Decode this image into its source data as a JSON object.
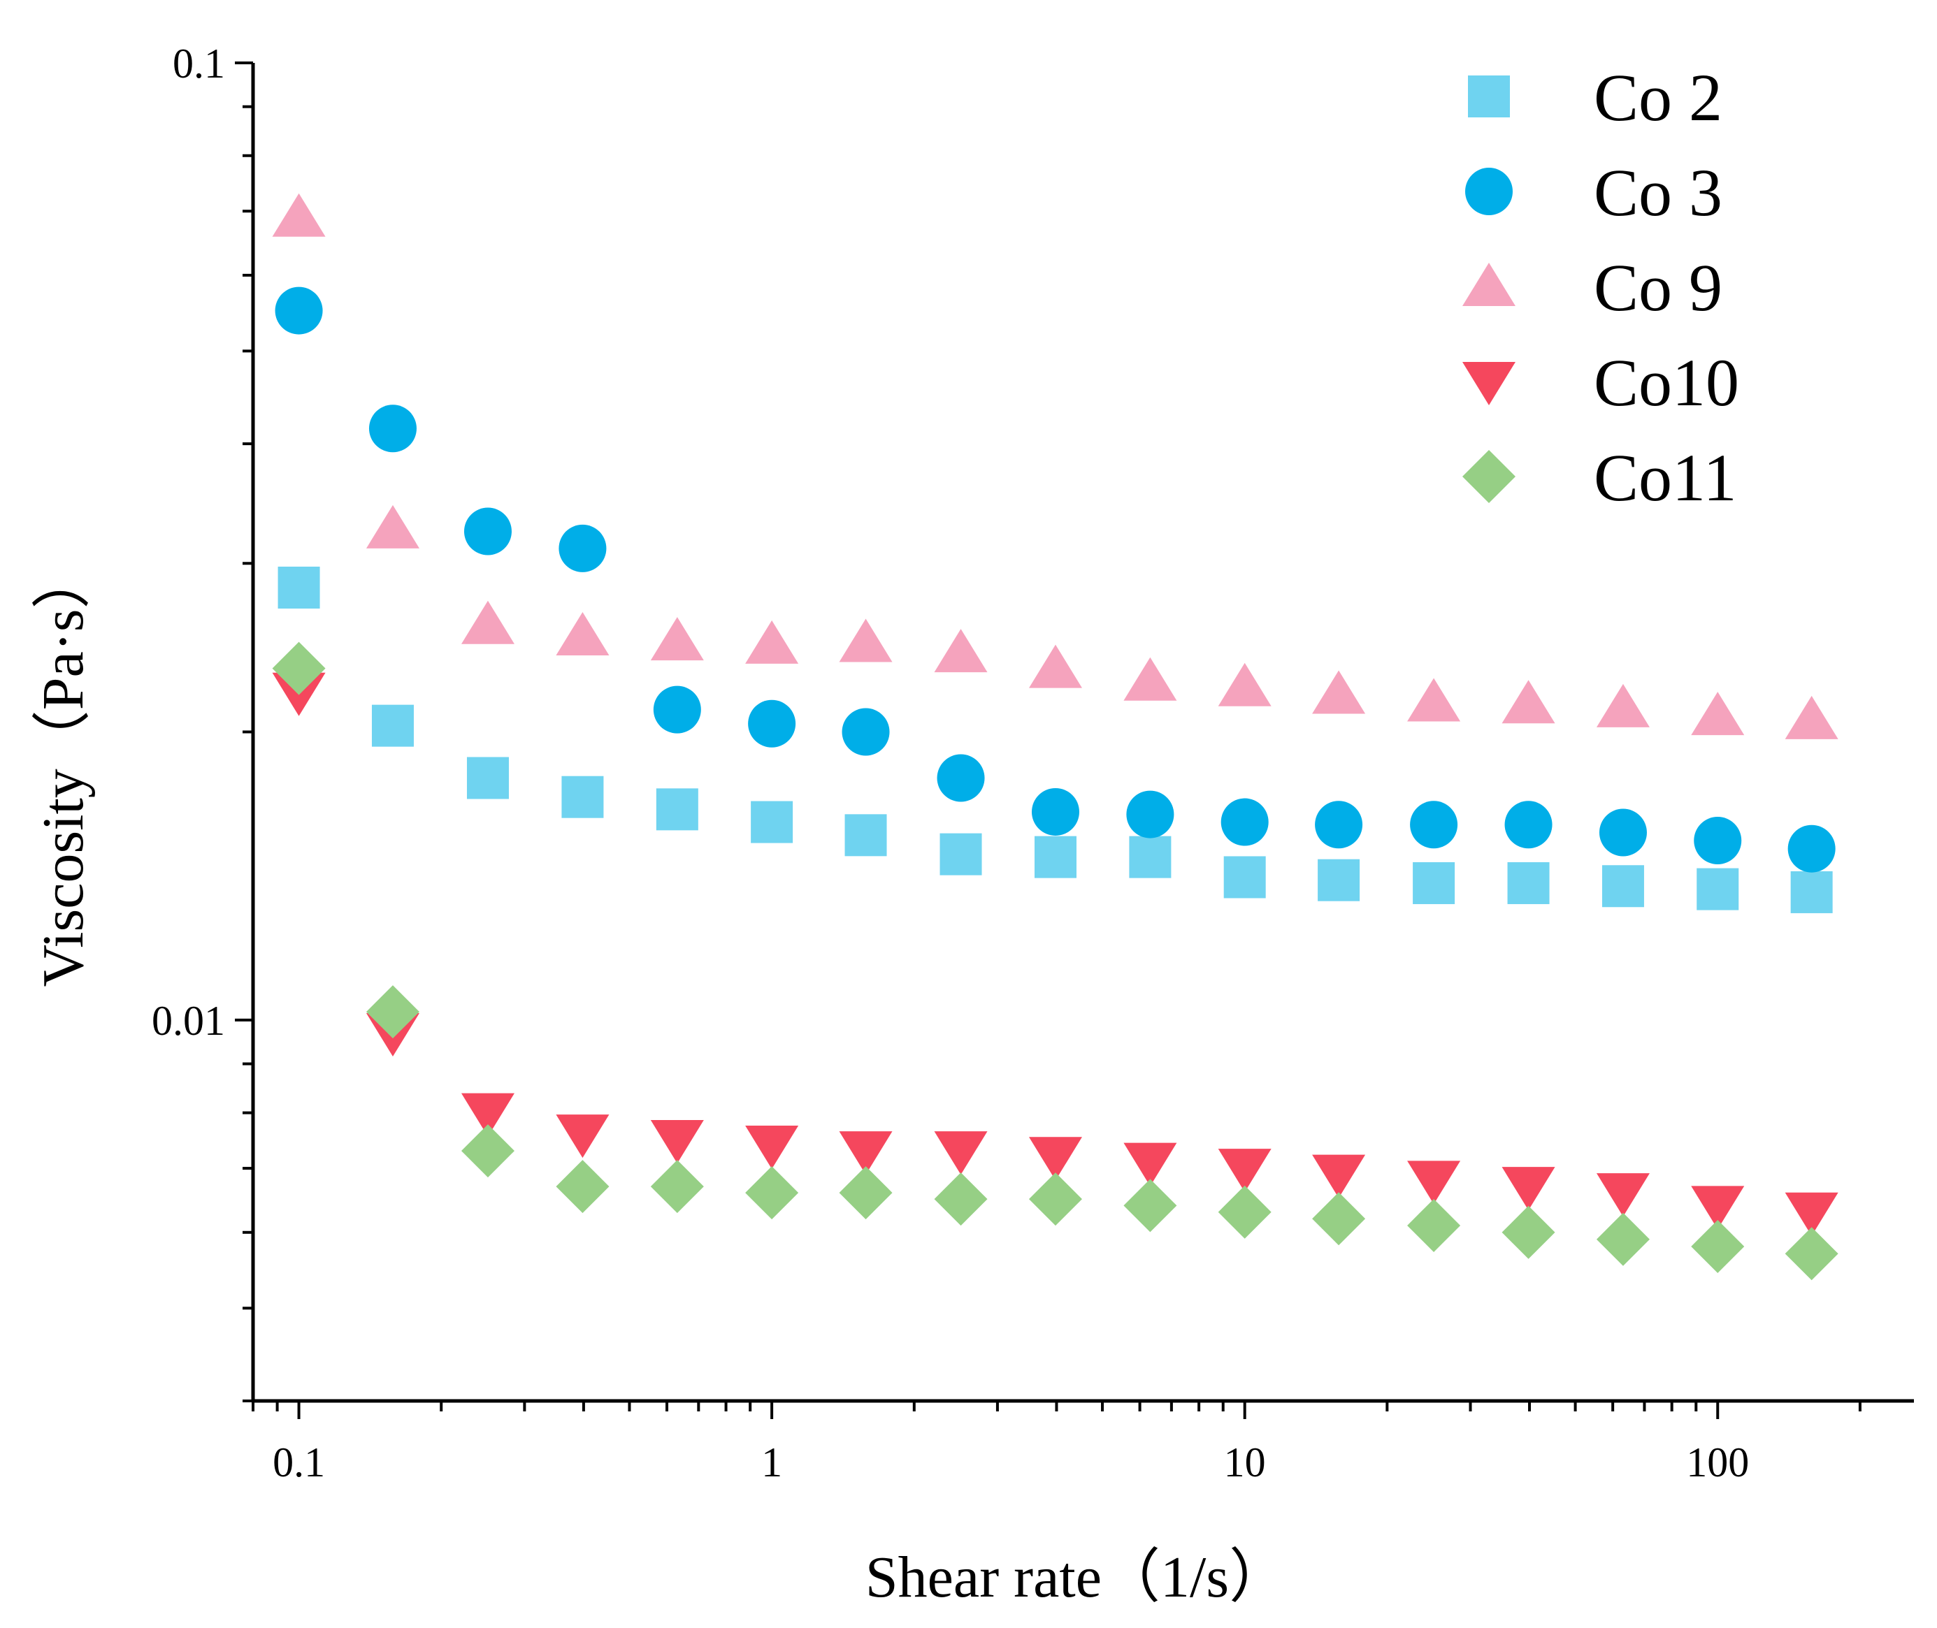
{
  "chart_data": {
    "type": "scatter",
    "title": "",
    "xlabel": "Shear rate（1/s）",
    "ylabel": "Viscosity（Pa·s）",
    "xscale": "log",
    "yscale": "log",
    "xlim": [
      0.08,
      260
    ],
    "ylim": [
      0.004,
      0.1
    ],
    "x_ticks": [
      {
        "value": 0.1,
        "label": "0.1"
      },
      {
        "value": 1,
        "label": "1"
      },
      {
        "value": 10,
        "label": "10"
      },
      {
        "value": 100,
        "label": "100"
      }
    ],
    "y_ticks": [
      {
        "value": 0.1,
        "label": "0.1"
      },
      {
        "value": 0.01,
        "label": "0.01"
      }
    ],
    "legend_position": "top-right",
    "x": [
      0.1,
      0.158,
      0.251,
      0.398,
      0.631,
      1.0,
      1.58,
      2.51,
      3.98,
      6.31,
      10.0,
      15.8,
      25.1,
      39.8,
      63.1,
      100,
      158
    ],
    "series": [
      {
        "name": "Co 2",
        "marker": "square",
        "color": "#6fd3f0",
        "values": [
          0.0283,
          0.0203,
          0.0179,
          0.0171,
          0.0166,
          0.0161,
          0.0156,
          0.0149,
          0.0148,
          0.0148,
          0.0141,
          0.014,
          0.0139,
          0.0139,
          0.0138,
          0.0137,
          0.0136
        ]
      },
      {
        "name": "Co 3",
        "marker": "circle",
        "color": "#00aee8",
        "values": [
          0.0551,
          0.0415,
          0.0324,
          0.0311,
          0.0211,
          0.0204,
          0.02,
          0.0179,
          0.0165,
          0.0164,
          0.0161,
          0.016,
          0.016,
          0.016,
          0.0157,
          0.0154,
          0.0151
        ]
      },
      {
        "name": "Co 9",
        "marker": "triangle-up",
        "color": "#f5a3bd",
        "values": [
          0.069,
          0.0326,
          0.0259,
          0.0252,
          0.0249,
          0.0247,
          0.0248,
          0.0242,
          0.0233,
          0.0226,
          0.0223,
          0.0219,
          0.0215,
          0.0214,
          0.0212,
          0.0208,
          0.0206
        ]
      },
      {
        "name": "Co10",
        "marker": "triangle-down",
        "color": "#f5475d",
        "values": [
          0.022,
          0.0097,
          0.008,
          0.0076,
          0.0075,
          0.0074,
          0.0073,
          0.0073,
          0.0072,
          0.0071,
          0.007,
          0.0069,
          0.0068,
          0.0067,
          0.0066,
          0.0064,
          0.0063
        ]
      },
      {
        "name": "Co11",
        "marker": "diamond",
        "color": "#96cf85",
        "values": [
          0.0233,
          0.0102,
          0.0073,
          0.0067,
          0.0067,
          0.0066,
          0.0066,
          0.0065,
          0.0065,
          0.0064,
          0.0063,
          0.0062,
          0.0061,
          0.006,
          0.0059,
          0.0058,
          0.0057
        ]
      }
    ]
  }
}
